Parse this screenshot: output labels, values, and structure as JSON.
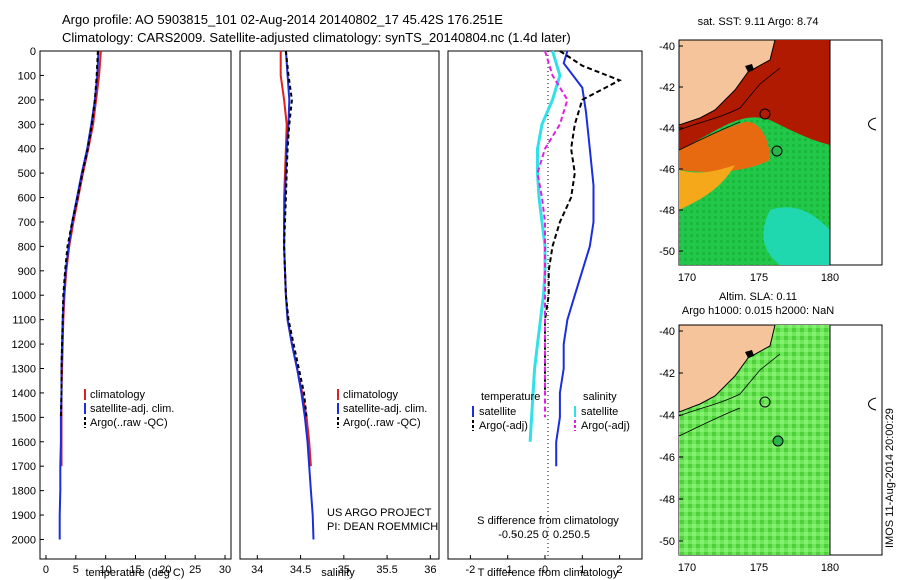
{
  "header": {
    "line1": "Argo profile: AO 5903815_101 02-Aug-2014 20140802_17 45.42S 176.251E",
    "line2": "Climatology: CARS2009. Satellite-adjusted climatology: synTS_20140804.nc (1.4d later)"
  },
  "colors": {
    "climatology": "#dd2222",
    "satellite": "#1a2ee0",
    "argo": "#000000",
    "salinity_satellite": "#33e0e8",
    "salinity_argo": "#e020e0",
    "land": "#f6c49a"
  },
  "credit": {
    "line1": "US ARGO PROJECT",
    "line2": "PI: DEAN ROEMMICH"
  },
  "timestamp": "IMOS 11-Aug-2014 20:00:29",
  "map_sst": {
    "title": "sat. SST: 9.11  Argo: 8.74",
    "xticks": [
      "170",
      "175",
      "180"
    ],
    "yticks": [
      "-40",
      "-42",
      "-44",
      "-46",
      "-48",
      "-50"
    ]
  },
  "map_sla": {
    "title1": "Altim. SLA: 0.11",
    "title2": "Argo h1000: 0.015  h2000: NaN",
    "xticks": [
      "170",
      "175",
      "180"
    ],
    "yticks": [
      "-40",
      "-42",
      "-44",
      "-46",
      "-48",
      "-50"
    ]
  },
  "chart_data": [
    {
      "type": "line",
      "xlabel": "temperature (deg C)",
      "xlim": [
        -1,
        31
      ],
      "ylim": [
        0,
        2080
      ],
      "xticks": [
        0,
        5,
        10,
        15,
        20,
        25,
        30
      ],
      "yticks": [
        0,
        100,
        200,
        300,
        400,
        500,
        600,
        700,
        800,
        900,
        1000,
        1100,
        1200,
        1300,
        1400,
        1500,
        1600,
        1700,
        1800,
        1900,
        2000
      ],
      "legend": [
        "climatology",
        "satellite-adj. clim.",
        "Argo(..raw -QC)"
      ],
      "series": [
        {
          "name": "climatology",
          "x": [
            9.2,
            8.9,
            8.4,
            7.9,
            7.1,
            6.2,
            5.4,
            4.6,
            3.9,
            3.4,
            3.1,
            2.9,
            2.8,
            2.7,
            2.6,
            2.6,
            2.6,
            2.6
          ],
          "y": [
            0,
            100,
            200,
            300,
            400,
            500,
            600,
            700,
            800,
            900,
            1000,
            1100,
            1200,
            1300,
            1400,
            1500,
            1600,
            1700
          ]
        },
        {
          "name": "satellite-adj. clim.",
          "x": [
            8.8,
            8.6,
            8.2,
            7.6,
            6.9,
            6.0,
            5.2,
            4.4,
            3.8,
            3.3,
            3.0,
            2.8,
            2.7,
            2.6,
            2.6,
            2.5,
            2.5,
            2.4,
            2.4,
            2.3,
            2.3
          ],
          "y": [
            0,
            100,
            200,
            300,
            400,
            500,
            600,
            700,
            800,
            900,
            1000,
            1100,
            1200,
            1300,
            1400,
            1500,
            1600,
            1700,
            1800,
            1900,
            2000
          ]
        },
        {
          "name": "Argo(..raw -QC)",
          "x": [
            8.7,
            8.5,
            8.2,
            7.7,
            7.0,
            6.1,
            5.3,
            4.4,
            3.6,
            3.2,
            2.9,
            2.8,
            2.7,
            2.6,
            2.6,
            2.5
          ],
          "y": [
            0,
            100,
            200,
            300,
            400,
            500,
            600,
            700,
            800,
            900,
            1000,
            1100,
            1200,
            1300,
            1400,
            1500
          ]
        }
      ]
    },
    {
      "type": "line",
      "xlabel": "salinity",
      "xlim": [
        33.8,
        36.1
      ],
      "ylim": [
        0,
        2080
      ],
      "xticks": [
        34,
        34.5,
        35,
        35.5,
        36
      ],
      "legend": [
        "climatology",
        "satellite-adj. clim.",
        "Argo(..raw -QC)"
      ],
      "series": [
        {
          "name": "climatology",
          "x": [
            34.27,
            34.27,
            34.31,
            34.34,
            34.33,
            34.32,
            34.31,
            34.31,
            34.31,
            34.32,
            34.33,
            34.35,
            34.4,
            34.46,
            34.52,
            34.57,
            34.6,
            34.62
          ],
          "y": [
            0,
            100,
            200,
            300,
            400,
            500,
            600,
            700,
            800,
            900,
            1000,
            1100,
            1200,
            1300,
            1400,
            1500,
            1600,
            1700
          ]
        },
        {
          "name": "satellite-adj. clim.",
          "x": [
            34.33,
            34.35,
            34.37,
            34.36,
            34.34,
            34.33,
            34.32,
            34.31,
            34.31,
            34.32,
            34.33,
            34.35,
            34.4,
            34.46,
            34.51,
            34.55,
            34.58,
            34.6,
            34.62,
            34.64,
            34.65
          ],
          "y": [
            0,
            100,
            200,
            300,
            400,
            500,
            600,
            700,
            800,
            900,
            1000,
            1100,
            1200,
            1300,
            1400,
            1500,
            1600,
            1700,
            1800,
            1900,
            2000
          ]
        },
        {
          "name": "Argo(..raw -QC)",
          "x": [
            34.33,
            34.36,
            34.4,
            34.37,
            34.35,
            34.34,
            34.33,
            34.32,
            34.31,
            34.32,
            34.33,
            34.36,
            34.42,
            34.48,
            34.54,
            34.57
          ],
          "y": [
            0,
            100,
            200,
            300,
            400,
            500,
            600,
            700,
            800,
            900,
            1000,
            1100,
            1200,
            1300,
            1400,
            1500
          ]
        }
      ]
    },
    {
      "type": "line",
      "xlabel": "T difference from climatology",
      "xlabel2": "S difference from climatology",
      "xlim": [
        -2.6,
        2.6
      ],
      "ylim": [
        0,
        2080
      ],
      "xticks": [
        -2,
        -1,
        0,
        1,
        2
      ],
      "xticks2": [
        "-0.5",
        "-0.25",
        "0",
        "0.25",
        "0.5"
      ],
      "legend_titles": [
        "temperature",
        "salinity"
      ],
      "legend": [
        "satellite",
        "Argo(-adj)",
        "satellite",
        "Argo(-adj)"
      ],
      "series": [
        {
          "name": "temperature satellite",
          "x": [
            0.6,
            0.5,
            1.0,
            1.1,
            1.2,
            1.3,
            1.3,
            1.2,
            1.0,
            0.8,
            0.6,
            0.5,
            0.5,
            0.4,
            0.4,
            0.3,
            0.3
          ],
          "y": [
            0,
            50,
            150,
            250,
            400,
            550,
            700,
            800,
            900,
            1000,
            1100,
            1200,
            1300,
            1400,
            1500,
            1600,
            1700
          ]
        },
        {
          "name": "temperature Argo(-adj)",
          "x": [
            0.4,
            1.0,
            2.0,
            1.0,
            0.8,
            0.7,
            0.8,
            0.7,
            0.4,
            0.2,
            0.1,
            0.1,
            0.0,
            0.0,
            0.0,
            0.0
          ],
          "y": [
            0,
            60,
            120,
            200,
            300,
            400,
            500,
            600,
            700,
            800,
            900,
            1000,
            1100,
            1200,
            1300,
            1400
          ]
        },
        {
          "name": "salinity satellite",
          "x": [
            0.05,
            0.1,
            0.05,
            -0.02,
            -0.05,
            -0.05,
            -0.04,
            -0.02,
            0.0,
            0.0,
            -0.01,
            -0.03,
            -0.05,
            -0.07,
            -0.08,
            -0.09,
            -0.1
          ],
          "y": [
            0,
            100,
            200,
            300,
            400,
            500,
            600,
            700,
            800,
            900,
            1000,
            1100,
            1200,
            1300,
            1400,
            1500,
            1600
          ]
        },
        {
          "name": "salinity Argo(-adj)",
          "x": [
            0.0,
            0.05,
            0.15,
            0.1,
            0.0,
            -0.05,
            -0.02,
            0.0,
            0.0,
            0.0,
            0.0,
            0.0,
            0.0,
            0.0,
            0.0,
            0.0
          ],
          "y": [
            0,
            100,
            200,
            300,
            400,
            500,
            600,
            700,
            800,
            900,
            1000,
            1100,
            1200,
            1300,
            1400,
            1500
          ]
        }
      ]
    }
  ]
}
